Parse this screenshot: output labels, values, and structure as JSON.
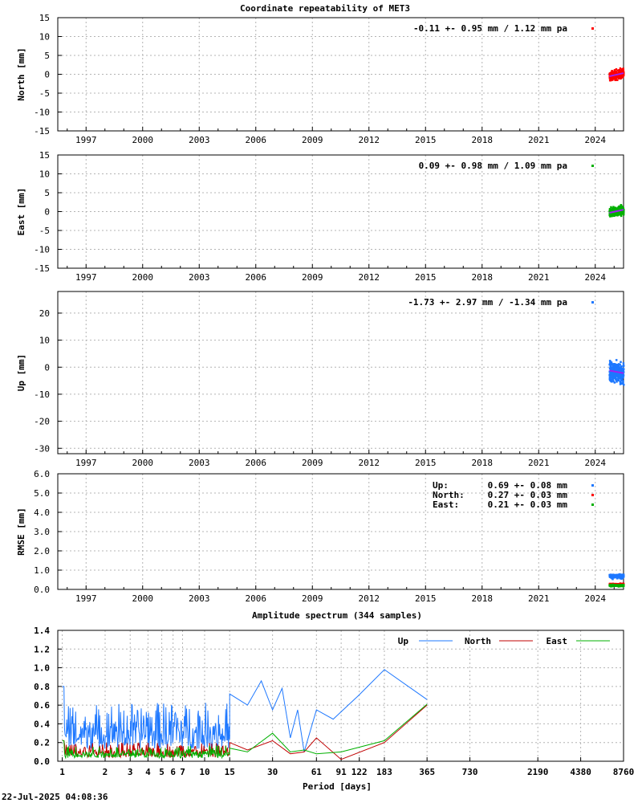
{
  "chart_data": [
    {
      "id": "north",
      "type": "scatter",
      "title": "Coordinate repeatability of MET3",
      "ylabel": "North [mm]",
      "ylim": [
        -15,
        15
      ],
      "yticks": [
        -15,
        -10,
        -5,
        0,
        5,
        10,
        15
      ],
      "ytick_labels": [
        "-15",
        "-10",
        "-5",
        "0",
        "5",
        "10",
        "15"
      ],
      "xlim": [
        1995.5,
        2025.5
      ],
      "xticks": [
        1997,
        2000,
        2003,
        2006,
        2009,
        2012,
        2015,
        2018,
        2021,
        2024
      ],
      "xtick_labels": [
        "1997",
        "2000",
        "2003",
        "2006",
        "2009",
        "2012",
        "2015",
        "2018",
        "2021",
        "2024"
      ],
      "color": "#ff0000",
      "legend": "-0.11 +- 0.95 mm /  1.12 mm pa",
      "series": {
        "t_start": 2024.75,
        "t_end": 2025.5,
        "mean": -0.11,
        "sd": 0.95,
        "trend_per_year": 1.12
      }
    },
    {
      "id": "east",
      "type": "scatter",
      "ylabel": "East [mm]",
      "ylim": [
        -15,
        15
      ],
      "yticks": [
        -15,
        -10,
        -5,
        0,
        5,
        10,
        15
      ],
      "ytick_labels": [
        "-15",
        "-10",
        "-5",
        "0",
        "5",
        "10",
        "15"
      ],
      "xlim": [
        1995.5,
        2025.5
      ],
      "xticks": [
        1997,
        2000,
        2003,
        2006,
        2009,
        2012,
        2015,
        2018,
        2021,
        2024
      ],
      "xtick_labels": [
        "1997",
        "2000",
        "2003",
        "2006",
        "2009",
        "2012",
        "2015",
        "2018",
        "2021",
        "2024"
      ],
      "color": "#00b000",
      "legend": " 0.09 +- 0.98 mm /  1.09 mm pa",
      "series": {
        "t_start": 2024.75,
        "t_end": 2025.5,
        "mean": 0.09,
        "sd": 0.98,
        "trend_per_year": 1.09
      }
    },
    {
      "id": "up",
      "type": "scatter",
      "ylabel": "Up [mm]",
      "ylim": [
        -32,
        28
      ],
      "yticks": [
        -30,
        -20,
        -10,
        0,
        10,
        20
      ],
      "ytick_labels": [
        "-30",
        "-20",
        "-10",
        "0",
        "10",
        "20"
      ],
      "xlim": [
        1995.5,
        2025.5
      ],
      "xticks": [
        1997,
        2000,
        2003,
        2006,
        2009,
        2012,
        2015,
        2018,
        2021,
        2024
      ],
      "xtick_labels": [
        "1997",
        "2000",
        "2003",
        "2006",
        "2009",
        "2012",
        "2015",
        "2018",
        "2021",
        "2024"
      ],
      "color": "#1e78ff",
      "legend": "-1.73 +- 2.97 mm / -1.34 mm pa",
      "series": {
        "t_start": 2024.75,
        "t_end": 2025.5,
        "mean": -1.73,
        "sd": 2.97,
        "trend_per_year": -1.34
      }
    },
    {
      "id": "rmse",
      "type": "scatter",
      "ylabel": "RMSE [mm]",
      "ylim": [
        0,
        6
      ],
      "yticks": [
        0,
        1,
        2,
        3,
        4,
        5,
        6
      ],
      "ytick_labels": [
        "0.0",
        "1.0",
        "2.0",
        "3.0",
        "4.0",
        "5.0",
        "6.0"
      ],
      "xlim": [
        1995.5,
        2025.5
      ],
      "xticks": [
        1997,
        2000,
        2003,
        2006,
        2009,
        2012,
        2015,
        2018,
        2021,
        2024
      ],
      "xtick_labels": [
        "1997",
        "2000",
        "2003",
        "2006",
        "2009",
        "2012",
        "2015",
        "2018",
        "2021",
        "2024"
      ],
      "legend_entries": [
        {
          "name": "Up:",
          "text": "0.69 +- 0.08 mm",
          "color": "#1e78ff",
          "mean": 0.69,
          "sd": 0.08
        },
        {
          "name": "North:",
          "text": "0.27 +- 0.03 mm",
          "color": "#ff0000",
          "mean": 0.27,
          "sd": 0.03
        },
        {
          "name": "East:",
          "text": "0.21 +- 0.03 mm",
          "color": "#00b000",
          "mean": 0.21,
          "sd": 0.03
        }
      ]
    },
    {
      "id": "spectrum",
      "type": "line",
      "title": "Amplitude spectrum (344 samples)",
      "xlabel": "Period [days]",
      "x_scale": "log",
      "xlim": [
        0.93,
        8760
      ],
      "ylim": [
        0,
        1.4
      ],
      "yticks": [
        0,
        0.2,
        0.4,
        0.6,
        0.8,
        1.0,
        1.2,
        1.4
      ],
      "ytick_labels": [
        "0.0",
        "0.2",
        "0.4",
        "0.6",
        "0.8",
        "1.0",
        "1.2",
        "1.4"
      ],
      "xticks": [
        1,
        2,
        3,
        4,
        5,
        6,
        7,
        10,
        15,
        30,
        61,
        91,
        122,
        183,
        365,
        730,
        2190,
        4380,
        8760
      ],
      "xtick_labels": [
        "1",
        "2",
        "3",
        "4",
        "5",
        "6",
        "7",
        "10",
        "15",
        "30",
        "61",
        "91",
        "122",
        "183",
        "365",
        "730",
        "2190",
        "4380",
        "8760"
      ],
      "series": [
        {
          "name": "Up",
          "color": "#1e78ff",
          "x": [
            15,
            20,
            25,
            30,
            35,
            40,
            45,
            50,
            61,
            80,
            120,
            183,
            365
          ],
          "y": [
            0.72,
            0.6,
            0.86,
            0.55,
            0.78,
            0.25,
            0.55,
            0.1,
            0.55,
            0.45,
            0.7,
            0.98,
            0.66
          ]
        },
        {
          "name": "North",
          "color": "#c00000",
          "x": [
            15,
            20,
            30,
            40,
            50,
            61,
            91,
            183,
            365
          ],
          "y": [
            0.2,
            0.12,
            0.22,
            0.08,
            0.1,
            0.25,
            0.02,
            0.2,
            0.6
          ]
        },
        {
          "name": "East",
          "color": "#00b000",
          "x": [
            15,
            20,
            30,
            40,
            50,
            61,
            91,
            183,
            365
          ],
          "y": [
            0.14,
            0.1,
            0.3,
            0.1,
            0.12,
            0.08,
            0.1,
            0.22,
            0.61
          ]
        }
      ]
    }
  ],
  "footer": {
    "timestamp": "22-Jul-2025 04:08:36"
  }
}
